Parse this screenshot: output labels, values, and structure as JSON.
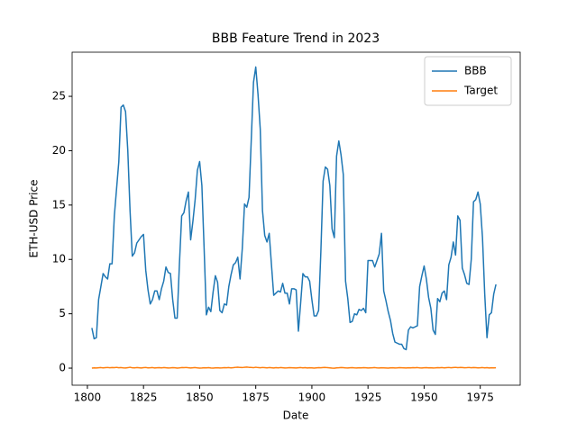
{
  "chart_data": {
    "type": "line",
    "title": "BBB Feature Trend in 2023",
    "x_label": "Date",
    "y_label": "ETH-USD Price",
    "x": [
      1802,
      1803,
      1804,
      1805,
      1806,
      1807,
      1808,
      1809,
      1810,
      1811,
      1812,
      1813,
      1814,
      1815,
      1816,
      1817,
      1818,
      1819,
      1820,
      1821,
      1822,
      1823,
      1824,
      1825,
      1826,
      1827,
      1828,
      1829,
      1830,
      1831,
      1832,
      1833,
      1834,
      1835,
      1836,
      1837,
      1838,
      1839,
      1840,
      1841,
      1842,
      1843,
      1844,
      1845,
      1846,
      1847,
      1848,
      1849,
      1850,
      1851,
      1852,
      1853,
      1854,
      1855,
      1856,
      1857,
      1858,
      1859,
      1860,
      1861,
      1862,
      1863,
      1864,
      1865,
      1866,
      1867,
      1868,
      1869,
      1870,
      1871,
      1872,
      1873,
      1874,
      1875,
      1876,
      1877,
      1878,
      1879,
      1880,
      1881,
      1882,
      1883,
      1884,
      1885,
      1886,
      1887,
      1888,
      1889,
      1890,
      1891,
      1892,
      1893,
      1894,
      1895,
      1896,
      1897,
      1898,
      1899,
      1900,
      1901,
      1902,
      1903,
      1904,
      1905,
      1906,
      1907,
      1908,
      1909,
      1910,
      1911,
      1912,
      1913,
      1914,
      1915,
      1916,
      1917,
      1918,
      1919,
      1920,
      1921,
      1922,
      1923,
      1924,
      1925,
      1926,
      1927,
      1928,
      1929,
      1930,
      1931,
      1932,
      1933,
      1934,
      1935,
      1936,
      1937,
      1938,
      1939,
      1940,
      1941,
      1942,
      1943,
      1944,
      1945,
      1946,
      1947,
      1948,
      1949,
      1950,
      1951,
      1952,
      1953,
      1954,
      1955,
      1956,
      1957,
      1958,
      1959,
      1960,
      1961,
      1962,
      1963,
      1964,
      1965,
      1966,
      1967,
      1968,
      1969,
      1970,
      1971,
      1972,
      1973,
      1974,
      1975,
      1976,
      1977,
      1978,
      1979,
      1980,
      1981,
      1982
    ],
    "series": [
      {
        "name": "BBB",
        "color": "#1f77b4",
        "values": [
          3.7,
          2.7,
          2.8,
          6.3,
          7.5,
          8.7,
          8.4,
          8.2,
          9.6,
          9.6,
          14,
          16.5,
          19,
          24,
          24.2,
          23.6,
          20,
          14.5,
          10.3,
          10.6,
          11.5,
          11.8,
          12.1,
          12.3,
          9,
          7.2,
          5.9,
          6.3,
          7.1,
          7.1,
          6.3,
          7.3,
          8,
          9.3,
          8.8,
          8.7,
          6.3,
          4.6,
          4.6,
          9.6,
          14,
          14.3,
          15.4,
          16.2,
          11.8,
          13.5,
          15.5,
          18.2,
          19,
          16.8,
          11,
          4.9,
          5.6,
          5.2,
          7,
          8.5,
          7.9,
          5.3,
          5.1,
          5.9,
          5.8,
          7.5,
          8.6,
          9.5,
          9.7,
          10.2,
          8.2,
          11,
          15.1,
          14.8,
          15.7,
          21,
          26.3,
          27.7,
          25.2,
          22,
          14.5,
          12.2,
          11.6,
          12.4,
          9.5,
          6.7,
          6.9,
          7.1,
          7,
          7.8,
          6.9,
          6.9,
          5.9,
          7.3,
          7.3,
          7.2,
          3.4,
          6,
          8.7,
          8.4,
          8.4,
          8,
          6.3,
          4.8,
          4.8,
          5.3,
          10.7,
          17.2,
          18.5,
          18.3,
          16.8,
          12.8,
          12,
          19.5,
          20.9,
          19.6,
          17.8,
          8,
          6.4,
          4.2,
          4.3,
          5,
          4.9,
          5.4,
          5.3,
          5.5,
          5.1,
          9.9,
          9.9,
          9.9,
          9.3,
          9.9,
          10.5,
          12.4,
          7.1,
          6.2,
          5.2,
          4.4,
          3.2,
          2.4,
          2.3,
          2.2,
          2.2,
          1.8,
          1.7,
          3.5,
          3.8,
          3.7,
          3.8,
          3.9,
          7.5,
          8.5,
          9.4,
          8.2,
          6.5,
          5.5,
          3.5,
          3.1,
          6.4,
          6.1,
          6.9,
          7.1,
          6.3,
          9.5,
          10.2,
          11.6,
          10.4,
          14,
          13.6,
          9.2,
          8.6,
          7.8,
          7.7,
          10,
          15.3,
          15.5,
          16.2,
          15.1,
          12,
          6.8,
          2.8,
          4.9,
          5.1,
          6.8,
          7.7
        ]
      },
      {
        "name": "Target",
        "color": "#ff7f0e",
        "values": [
          0,
          0.02,
          0.01,
          0.03,
          0.05,
          0.02,
          0.04,
          0.06,
          0.03,
          0.05,
          0.04,
          0.07,
          0.03,
          0.05,
          0.02,
          0.01,
          0.04,
          0.08,
          0.03,
          0.02,
          0.05,
          0.03,
          0.01,
          0.04,
          0.06,
          0.02,
          0.03,
          0.05,
          0.01,
          0.03,
          0.04,
          0.02,
          0.05,
          0.03,
          0.01,
          0.02,
          0.04,
          0.03,
          0.0,
          0.02,
          0.05,
          0.04,
          0.06,
          0.03,
          0.01,
          0.03,
          0.05,
          0.02,
          0.0,
          0.01,
          0.03,
          0.02,
          0.04,
          0.01,
          0.0,
          0.02,
          0.03,
          0.01,
          0.02,
          0.04,
          0.03,
          0.05,
          0.02,
          0.04,
          0.07,
          0.09,
          0.06,
          0.05,
          0.08,
          0.1,
          0.07,
          0.06,
          0.04,
          0.08,
          0.05,
          0.03,
          0.06,
          0.04,
          0.02,
          0.05,
          0.03,
          0.01,
          0.04,
          0.02,
          0.05,
          0.03,
          0.01,
          0.02,
          0.04,
          0.03,
          0.02,
          0.01,
          0.03,
          0.05,
          0.02,
          0.04,
          0.01,
          0.03,
          0.02,
          0.0,
          0.02,
          0.04,
          0.03,
          0.05,
          0.06,
          0.04,
          0.02,
          0.0,
          -0.01,
          0.02,
          0.03,
          0.05,
          0.04,
          0.02,
          0.01,
          0.03,
          0.04,
          0.02,
          0.01,
          0.03,
          0.02,
          0.04,
          0.03,
          0.01,
          0.02,
          0.03,
          0.05,
          0.02,
          0.01,
          0.03,
          0.02,
          0.01,
          0.0,
          0.02,
          0.03,
          0.01,
          0.02,
          0.04,
          0.03,
          0.02,
          0.01,
          0.03,
          0.02,
          0.04,
          0.03,
          0.05,
          0.02,
          0.01,
          0.03,
          0.04,
          0.02,
          0.03,
          0.01,
          0.02,
          0.04,
          0.03,
          0.05,
          0.02,
          0.04,
          0.06,
          0.03,
          0.05,
          0.07,
          0.04,
          0.06,
          0.05,
          0.03,
          0.04,
          0.06,
          0.03,
          0.05,
          0.04,
          0.02,
          0.03,
          0.05,
          0.02,
          0.04,
          0.01,
          0.03,
          0.02,
          0.03
        ]
      }
    ],
    "xlim": [
      1793.2,
      1992.8
    ],
    "ylim": [
      -1.57,
      29.06
    ],
    "xticks": [
      1800,
      1825,
      1850,
      1875,
      1900,
      1925,
      1950,
      1975
    ],
    "yticks": [
      0,
      5,
      10,
      15,
      20,
      25
    ],
    "grid": false,
    "legend": "upper right"
  }
}
